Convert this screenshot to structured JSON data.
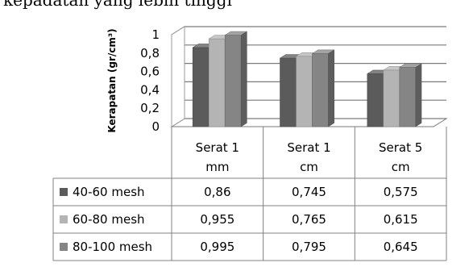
{
  "caption_fragment": "kepadatan yang lebih tinggi",
  "chart_data": {
    "type": "bar",
    "style": "3d-clustered-column-with-data-table",
    "ylabel": "Kerapatan (gr/cm³)",
    "ylim": [
      0,
      1
    ],
    "y_ticks": [
      "0",
      "0,2",
      "0,4",
      "0,6",
      "0,8",
      "1"
    ],
    "grid": true,
    "legend_placement": "data-table-rows",
    "categories": [
      [
        "Serat 1",
        "mm"
      ],
      [
        "Serat 1",
        "cm"
      ],
      [
        "Serat 5",
        "cm"
      ]
    ],
    "series": [
      {
        "name": "40-60 mesh",
        "color": "#5b5b5b",
        "values": [
          0.86,
          0.745,
          0.575
        ],
        "labels": [
          "0,86",
          "0,745",
          "0,575"
        ]
      },
      {
        "name": "60-80 mesh",
        "color": "#b4b4b4",
        "values": [
          0.955,
          0.765,
          0.615
        ],
        "labels": [
          "0,955",
          "0,765",
          "0,615"
        ]
      },
      {
        "name": "80-100 mesh",
        "color": "#858585",
        "values": [
          0.995,
          0.795,
          0.645
        ],
        "labels": [
          "0,995",
          "0,795",
          "0,645"
        ]
      }
    ]
  }
}
